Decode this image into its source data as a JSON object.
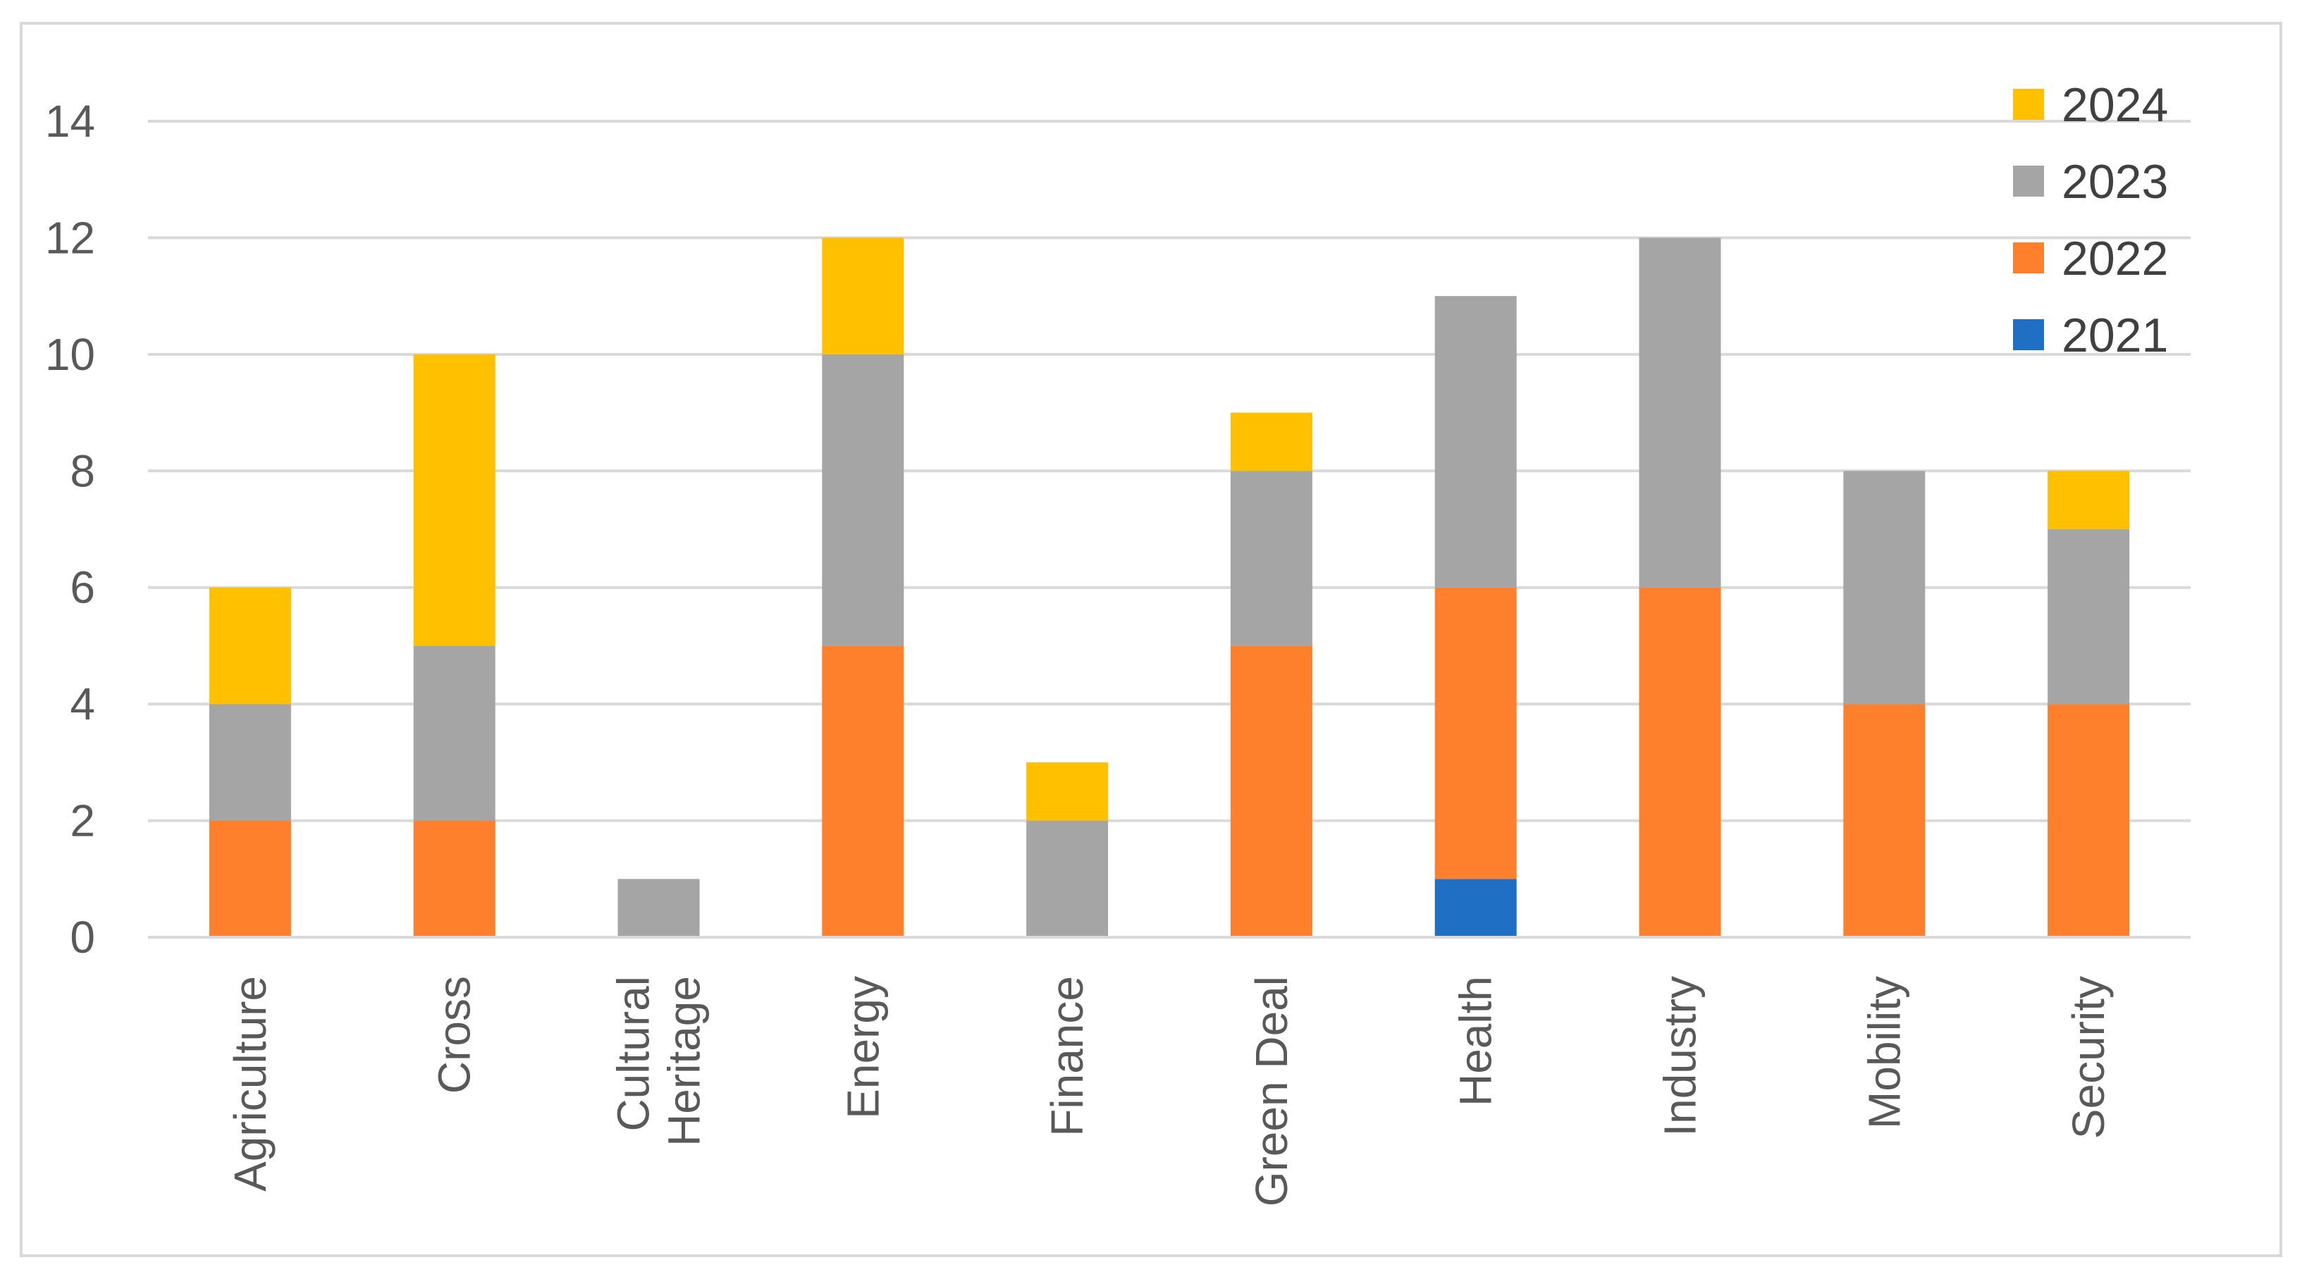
{
  "chart_data": {
    "type": "bar",
    "stacked": true,
    "title": "",
    "xlabel": "",
    "ylabel": "",
    "ylim": [
      0,
      14
    ],
    "yticks": [
      0,
      2,
      4,
      6,
      8,
      10,
      12,
      14
    ],
    "grid": true,
    "legend_position": "top-right",
    "categories": [
      [
        "Agriculture"
      ],
      [
        "Cross"
      ],
      [
        "Cultural",
        "Heritage"
      ],
      [
        "Energy"
      ],
      [
        "Finance"
      ],
      [
        "Green Deal"
      ],
      [
        "Health"
      ],
      [
        "Industry"
      ],
      [
        "Mobility"
      ],
      [
        "Security"
      ]
    ],
    "series": [
      {
        "name": "2021",
        "color": "#1F6FC5",
        "values": [
          0,
          0,
          0,
          0,
          0,
          0,
          1,
          0,
          0,
          0
        ]
      },
      {
        "name": "2022",
        "color": "#FE7F2C",
        "values": [
          2,
          2,
          0,
          5,
          0,
          5,
          5,
          6,
          4,
          4
        ]
      },
      {
        "name": "2023",
        "color": "#A5A5A5",
        "values": [
          2,
          3,
          1,
          5,
          2,
          3,
          5,
          6,
          4,
          3
        ]
      },
      {
        "name": "2024",
        "color": "#FFC000",
        "values": [
          2,
          5,
          0,
          2,
          1,
          1,
          0,
          0,
          0,
          1
        ]
      }
    ],
    "legend_order": [
      "2024",
      "2023",
      "2022",
      "2021"
    ]
  }
}
